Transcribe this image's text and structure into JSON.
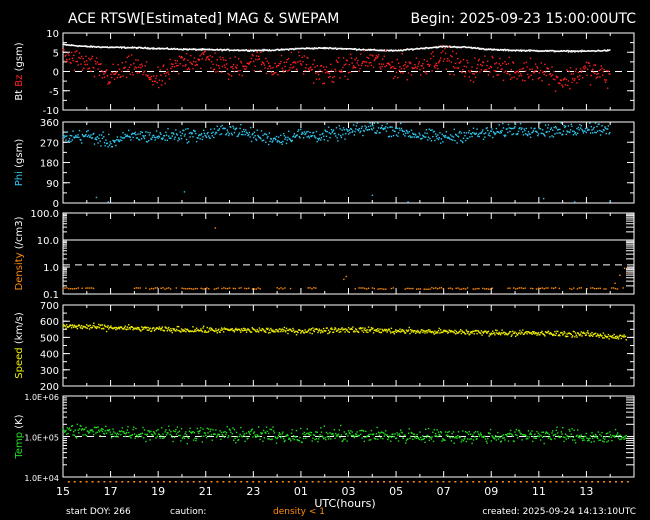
{
  "header": {
    "title": "ACE RTSW[Estimated] MAG & SWEPAM",
    "begin": "Begin: 2025-09-23 15:00:00UTC"
  },
  "footer": {
    "start_doy": "start DOY: 266",
    "caution": "caution:",
    "density_note": "density < 1",
    "created": "created: 2025-09-24 14:13:10UTC"
  },
  "colors": {
    "bt": "#ffffff",
    "bz": "#ff2020",
    "phi": "#30c8f0",
    "density": "#ff8c10",
    "speed": "#f0f000",
    "temp": "#20e020",
    "axis": "#ffffff",
    "background": "#000000"
  },
  "chart_data": {
    "type": "scatter",
    "xlabel": "UTC(hours)",
    "x_ticks": [
      "15",
      "17",
      "19",
      "21",
      "23",
      "01",
      "03",
      "05",
      "07",
      "09",
      "11",
      "13"
    ],
    "x_range_hours": [
      0,
      24
    ],
    "panels": [
      {
        "id": "mag",
        "ylabel": [
          {
            "text": "Bt",
            "color": "#ffffff"
          },
          {
            "text": "Bz",
            "color": "#ff2020"
          },
          {
            "text": "(gsm)",
            "color": "#ffffff"
          }
        ],
        "ylim": [
          -10,
          10
        ],
        "yticks": [
          "10",
          "5",
          "0",
          "-5",
          "-10"
        ],
        "ytick_values": [
          10,
          5,
          0,
          -5,
          -10
        ],
        "reference_lines": [
          0
        ],
        "series": [
          {
            "id": "bt",
            "color": "#ffffff",
            "x": [
              0,
              1,
              2,
              3,
              4,
              5,
              6,
              7,
              8,
              9,
              10,
              11,
              12,
              13,
              14,
              15,
              16,
              17,
              18,
              19,
              20,
              21,
              22,
              23
            ],
            "values": [
              7.0,
              6.5,
              6.3,
              6.2,
              6.0,
              5.8,
              5.7,
              5.6,
              5.5,
              5.6,
              6.0,
              6.1,
              5.9,
              5.6,
              5.4,
              6.0,
              6.5,
              6.3,
              5.7,
              5.5,
              5.4,
              5.3,
              5.3,
              5.5
            ],
            "noise": 0.3
          },
          {
            "id": "bz",
            "color": "#ff2020",
            "x": [
              0,
              1,
              2,
              3,
              4,
              5,
              6,
              7,
              8,
              9,
              10,
              11,
              12,
              13,
              14,
              15,
              16,
              17,
              18,
              19,
              20,
              21,
              22,
              23
            ],
            "values": [
              4.0,
              2.0,
              -1.5,
              1.5,
              -2.5,
              2.5,
              3.5,
              0.5,
              3.0,
              1.0,
              2.5,
              -1.0,
              1.5,
              3.0,
              1.0,
              1.5,
              4.0,
              0.0,
              2.0,
              -0.5,
              1.0,
              -2.5,
              0.5,
              -1.5
            ],
            "noise": 2.5
          }
        ]
      },
      {
        "id": "phi",
        "ylabel": [
          {
            "text": "Phi",
            "color": "#30c8f0"
          },
          {
            "text": "(gsm)",
            "color": "#ffffff"
          }
        ],
        "ylim": [
          0,
          360
        ],
        "yticks": [
          "360",
          "270",
          "180",
          "90",
          "0"
        ],
        "ytick_values": [
          360,
          270,
          180,
          90,
          0
        ],
        "series": [
          {
            "id": "phi",
            "color": "#30c8f0",
            "x": [
              0,
              1,
              2,
              3,
              4,
              5,
              6,
              7,
              8,
              9,
              10,
              11,
              12,
              13,
              14,
              15,
              16,
              17,
              18,
              19,
              20,
              21,
              22,
              23
            ],
            "values": [
              290,
              300,
              270,
              300,
              295,
              305,
              300,
              330,
              300,
              285,
              305,
              300,
              315,
              335,
              325,
              300,
              290,
              305,
              310,
              330,
              325,
              320,
              335,
              330
            ],
            "noise": 25,
            "sparse_points": [
              [
                1.4,
                25
              ],
              [
                1.9,
                5
              ],
              [
                5.1,
                50
              ],
              [
                13.0,
                35
              ],
              [
                14.5,
                5
              ],
              [
                20.2,
                20
              ],
              [
                21.5,
                5
              ],
              [
                23.0,
                8
              ]
            ]
          }
        ]
      },
      {
        "id": "density",
        "ylabel": [
          {
            "text": "Density",
            "color": "#ff8c10"
          },
          {
            "text": "(/cm3)",
            "color": "#ffffff"
          }
        ],
        "scale": "log",
        "ylim": [
          0.1,
          100
        ],
        "yticks": [
          "100.0",
          "10.0",
          "1.0",
          "0.1"
        ],
        "ytick_values": [
          100,
          10,
          1,
          0.1
        ],
        "reference_lines": [
          1.2
        ],
        "series": [
          {
            "id": "density",
            "color": "#ff8c10",
            "floor_segments": [
              [
                0,
                1.3
              ],
              [
                3.0,
                8.5
              ],
              [
                9.0,
                9.6
              ],
              [
                10.3,
                10.8
              ],
              [
                12.2,
                14.0
              ],
              [
                14.3,
                16.0
              ],
              [
                16.2,
                18.2
              ],
              [
                18.7,
                21.0
              ],
              [
                21.3,
                23.6
              ]
            ],
            "floor_value": 0.15,
            "sparse_points": [
              [
                6.4,
                28
              ],
              [
                11.8,
                0.35
              ],
              [
                11.9,
                0.45
              ],
              [
                23.2,
                0.25
              ],
              [
                23.4,
                0.5
              ],
              [
                23.6,
                0.9
              ],
              [
                23.7,
                0.6
              ]
            ]
          }
        ]
      },
      {
        "id": "speed",
        "ylabel": [
          {
            "text": "Speed",
            "color": "#f0f000"
          },
          {
            "text": "(km/s)",
            "color": "#ffffff"
          }
        ],
        "ylim": [
          200,
          700
        ],
        "yticks": [
          "700",
          "600",
          "500",
          "400",
          "300",
          "200"
        ],
        "ytick_values": [
          700,
          600,
          500,
          400,
          300,
          200
        ],
        "series": [
          {
            "id": "speed",
            "color": "#f0f000",
            "x": [
              0,
              2,
              4,
              6,
              8,
              10,
              12,
              14,
              16,
              18,
              20,
              22,
              23.7
            ],
            "values": [
              570,
              560,
              550,
              545,
              545,
              540,
              550,
              540,
              535,
              530,
              525,
              520,
              500
            ],
            "noise": 15
          }
        ]
      },
      {
        "id": "temp",
        "ylabel": [
          {
            "text": "Temp",
            "color": "#20e020"
          },
          {
            "text": "(K)",
            "color": "#ffffff"
          }
        ],
        "scale": "log",
        "ylim": [
          10000,
          1000000
        ],
        "yticks": [
          "1.0E+06",
          "1.0E+05",
          "1.0E+04"
        ],
        "ytick_values": [
          1000000,
          100000,
          10000
        ],
        "reference_lines": [
          100000
        ],
        "series": [
          {
            "id": "temp",
            "color": "#20e020",
            "x": [
              0,
              2,
              4,
              6,
              8,
              10,
              12,
              14,
              16,
              18,
              20,
              22,
              23.7
            ],
            "values": [
              140000,
              130000,
              120000,
              115000,
              110000,
              105000,
              110000,
              105000,
              105000,
              100000,
              110000,
              100000,
              95000
            ],
            "noise_log": 0.15
          }
        ]
      }
    ]
  }
}
